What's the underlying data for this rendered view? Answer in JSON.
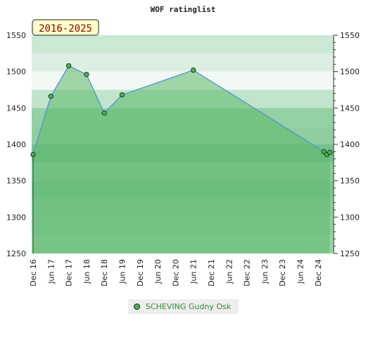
{
  "chart_data": {
    "type": "area",
    "title": "WOF ratinglist",
    "period_label": "2016-2025",
    "y_ticks": [
      1250,
      1300,
      1350,
      1400,
      1450,
      1500,
      1550
    ],
    "ylim": [
      1250,
      1550
    ],
    "x_tick_labels": [
      "Dec 16",
      "Jun 17",
      "Dec 17",
      "Jun 18",
      "Dec 18",
      "Jun 19",
      "Dec 19",
      "Jun 20",
      "Dec 20",
      "Jun 21",
      "Dec 21",
      "Jun 22",
      "Dec 22",
      "Jun 23",
      "Dec 23",
      "Jun 24",
      "Dec 24"
    ],
    "series": [
      {
        "name": "SCHEVING Gudny Osk",
        "points": [
          {
            "x": "Dec 16",
            "y": 1386
          },
          {
            "x": "Jun 17",
            "y": 1466
          },
          {
            "x": "Dec 17",
            "y": 1508
          },
          {
            "x": "Jun 18",
            "y": 1496
          },
          {
            "x": "Dec 18",
            "y": 1443
          },
          {
            "x": "Jun 19",
            "y": 1468
          },
          {
            "x": "Jun 21",
            "y": 1502
          },
          {
            "x": "Feb 25",
            "y": 1390
          },
          {
            "x": "Mar 25",
            "y": 1386
          },
          {
            "x": "Apr 25",
            "y": 1389
          }
        ]
      }
    ],
    "legend_position": "bottom",
    "grid": true,
    "colors": {
      "area_fill": "#5cb86a",
      "line": "#4a90d9",
      "marker": "#4caf50",
      "band_light": "#b3dcc0",
      "band_dark": "#78c08f",
      "period_box": "#ffffcc"
    }
  }
}
